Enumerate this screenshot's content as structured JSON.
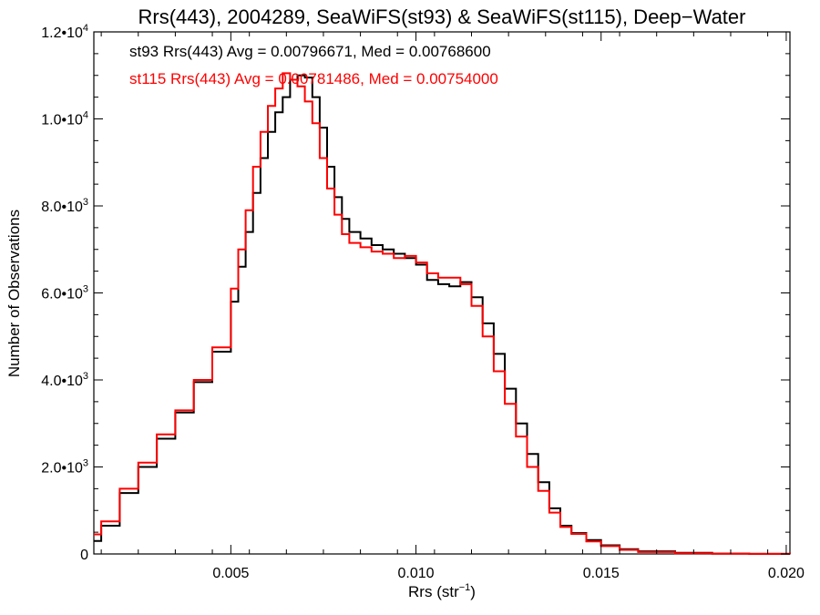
{
  "chart_data": {
    "type": "line",
    "title": "Rrs(443), 2004289, SeaWiFS(st93) & SeaWiFS(st115), Deep−Water",
    "xlabel": "Rrs (str",
    "xlabel_sup": "−1",
    "xlabel_suffix": ")",
    "ylabel": "Number of Observations",
    "xlim": [
      0.0013,
      0.0201
    ],
    "ylim": [
      0,
      12000
    ],
    "x_ticks": [
      {
        "value": 0.005,
        "label": "0.005"
      },
      {
        "value": 0.01,
        "label": "0.010"
      },
      {
        "value": 0.015,
        "label": "0.015"
      },
      {
        "value": 0.02,
        "label": "0.020"
      }
    ],
    "y_ticks": [
      {
        "value": 0,
        "base": "0",
        "exp": ""
      },
      {
        "value": 2000,
        "base": "2.0•10",
        "exp": "3"
      },
      {
        "value": 4000,
        "base": "4.0•10",
        "exp": "3"
      },
      {
        "value": 6000,
        "base": "6.0•10",
        "exp": "3"
      },
      {
        "value": 8000,
        "base": "8.0•10",
        "exp": "3"
      },
      {
        "value": 10000,
        "base": "1.0•10",
        "exp": "4"
      },
      {
        "value": 12000,
        "base": "1.2•10",
        "exp": "4"
      }
    ],
    "annotations": [
      "st93 Rrs(443) Avg = 0.00796671, Med = 0.00768600",
      "st115 Rrs(443) Avg = 0.00781486, Med = 0.00754000"
    ],
    "grid": false,
    "series": [
      {
        "name": "st93",
        "color": "#000000",
        "x": [
          0.0013,
          0.0015,
          0.002,
          0.0025,
          0.003,
          0.0035,
          0.004,
          0.0045,
          0.005,
          0.0052,
          0.0054,
          0.0056,
          0.0058,
          0.006,
          0.0062,
          0.0064,
          0.0066,
          0.0068,
          0.007,
          0.0072,
          0.0074,
          0.0076,
          0.0078,
          0.008,
          0.0082,
          0.0085,
          0.0088,
          0.0091,
          0.0094,
          0.0097,
          0.01,
          0.0103,
          0.0106,
          0.0109,
          0.0112,
          0.0115,
          0.0118,
          0.0121,
          0.0124,
          0.0127,
          0.013,
          0.0133,
          0.0136,
          0.0139,
          0.0142,
          0.0146,
          0.015,
          0.0155,
          0.016,
          0.017,
          0.018,
          0.019,
          0.0201
        ],
        "y": [
          300,
          650,
          1400,
          2000,
          2650,
          3250,
          3950,
          4650,
          5800,
          6600,
          7400,
          8300,
          9100,
          9700,
          10150,
          10500,
          10900,
          11000,
          10950,
          10500,
          9800,
          8900,
          8200,
          7700,
          7400,
          7250,
          7100,
          7000,
          6900,
          6800,
          6650,
          6300,
          6200,
          6150,
          6250,
          5900,
          5300,
          4600,
          3800,
          3000,
          2300,
          1650,
          1050,
          650,
          480,
          320,
          200,
          110,
          60,
          25,
          8,
          3,
          0
        ],
        "label_color": "#000000"
      },
      {
        "name": "st115",
        "color": "#ff0000",
        "x": [
          0.0013,
          0.0015,
          0.002,
          0.0025,
          0.003,
          0.0035,
          0.004,
          0.0045,
          0.005,
          0.0052,
          0.0054,
          0.0056,
          0.0058,
          0.006,
          0.0062,
          0.0064,
          0.0066,
          0.0068,
          0.007,
          0.0072,
          0.0074,
          0.0076,
          0.0078,
          0.008,
          0.0082,
          0.0085,
          0.0088,
          0.0091,
          0.0094,
          0.0097,
          0.01,
          0.0103,
          0.0106,
          0.0109,
          0.0112,
          0.0115,
          0.0118,
          0.0121,
          0.0124,
          0.0127,
          0.013,
          0.0133,
          0.0136,
          0.0139,
          0.0142,
          0.0146,
          0.015,
          0.0155,
          0.016,
          0.017,
          0.018,
          0.019,
          0.0201
        ],
        "y": [
          450,
          750,
          1500,
          2100,
          2750,
          3300,
          4000,
          4750,
          6100,
          7000,
          7900,
          8900,
          9700,
          10300,
          10700,
          11050,
          10900,
          10750,
          10400,
          9900,
          9100,
          8400,
          7800,
          7350,
          7150,
          7050,
          6950,
          6900,
          6800,
          6850,
          6700,
          6450,
          6350,
          6350,
          6200,
          5700,
          5000,
          4200,
          3450,
          2700,
          2000,
          1450,
          950,
          620,
          460,
          290,
          180,
          95,
          45,
          15,
          5,
          2,
          0
        ],
        "label_color": "#ff0000"
      }
    ]
  }
}
